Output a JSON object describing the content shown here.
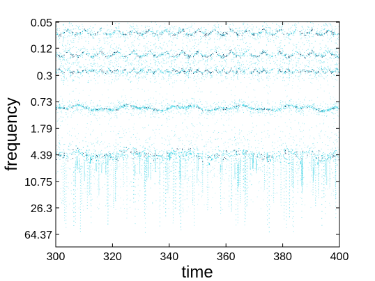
{
  "chart_data": {
    "type": "scatter",
    "title": "",
    "xlabel": "time",
    "ylabel": "frequency",
    "xlim": [
      300,
      400
    ],
    "ylim": [
      0.05,
      160
    ],
    "y_scale": "log",
    "y_inverted": true,
    "grid": false,
    "legend": "none",
    "x_ticks": [
      300,
      320,
      340,
      360,
      380,
      400
    ],
    "x_tick_labels": [
      "300",
      "320",
      "340",
      "360",
      "380",
      "400"
    ],
    "y_ticks": [
      0.05,
      0.12,
      0.3,
      0.73,
      1.79,
      4.39,
      10.75,
      26.3,
      64.37
    ],
    "y_tick_labels": [
      "0.05",
      "0.12",
      "0.3",
      "0.73",
      "1.79",
      "4.39",
      "10.75",
      "26.3",
      "64.37"
    ],
    "point_color": "#3cd4e6",
    "highlight_color": "#00264d",
    "features": [
      {
        "kind": "ridge",
        "freq_center": 0.063,
        "freq_amplitude": 0.012,
        "period": 11.5,
        "phase": 0.3
      },
      {
        "kind": "ridge",
        "freq_center": 0.13,
        "freq_amplitude": 0.028,
        "period": 11.5,
        "phase": 0.3
      },
      {
        "kind": "ridge",
        "freq_center": 0.24,
        "freq_amplitude": 0.03,
        "period": 5.75,
        "phase": 0.6
      },
      {
        "kind": "band",
        "freq_center": 0.9,
        "freq_spread": 0.12
      },
      {
        "kind": "band",
        "freq_center": 4.39,
        "freq_spread": 0.45
      },
      {
        "kind": "streaks",
        "freq_from": 5,
        "freq_to": 70
      }
    ]
  }
}
